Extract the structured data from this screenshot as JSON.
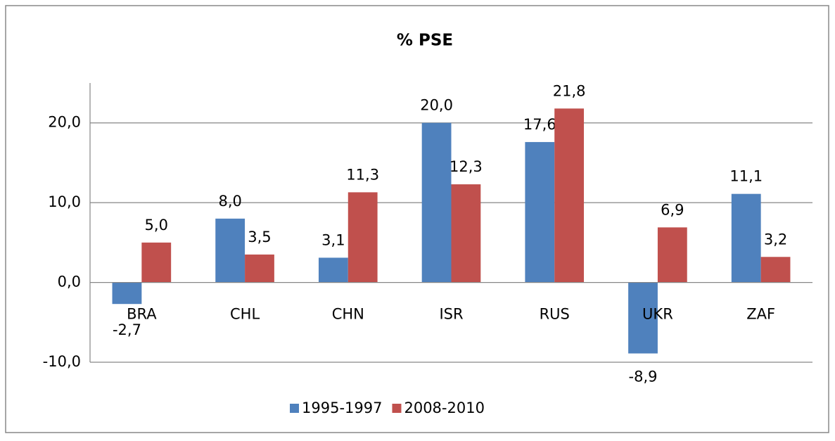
{
  "chart_data": {
    "type": "bar",
    "title": "% PSE",
    "categories": [
      "BRA",
      "CHL",
      "CHN",
      "ISR",
      "RUS",
      "UKR",
      "ZAF"
    ],
    "series": [
      {
        "name": "1995-1997",
        "color": "#4f81bd",
        "values": [
          -2.7,
          8.0,
          3.1,
          20.0,
          17.6,
          -8.9,
          11.1
        ],
        "value_labels": [
          "-2,7",
          "8,0",
          "3,1",
          "20,0",
          "17,6",
          "-8,9",
          "11,1"
        ]
      },
      {
        "name": "2008-2010",
        "color": "#c0504d",
        "values": [
          5.0,
          3.5,
          11.3,
          12.3,
          21.8,
          6.9,
          3.2
        ],
        "value_labels": [
          "5,0",
          "3,5",
          "11,3",
          "12,3",
          "21,8",
          "6,9",
          "3,2"
        ]
      }
    ],
    "ylim": [
      -10,
      25
    ],
    "yticks": [
      {
        "value": -10,
        "label": "-10,0"
      },
      {
        "value": 0,
        "label": "0,0"
      },
      {
        "value": 10,
        "label": "10,0"
      },
      {
        "value": 20,
        "label": "20,0"
      }
    ],
    "grid": true,
    "legend": "bottom"
  }
}
